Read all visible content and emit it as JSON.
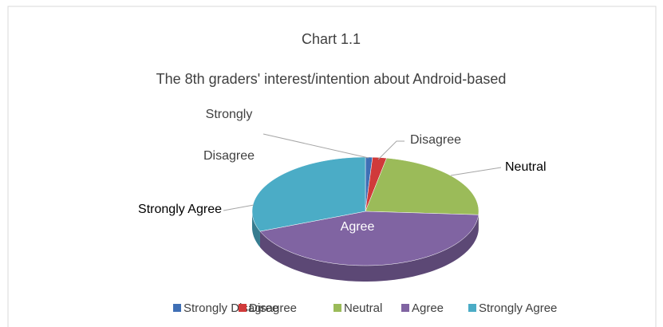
{
  "chart_data": {
    "type": "pie",
    "title": "Chart 1.1",
    "subtitle": "The 8th graders' interest/intention about Android-based",
    "categories": [
      "Strongly Disagree",
      "Disagree",
      "Neutral",
      "Agree",
      "Strongly Agree"
    ],
    "values": [
      1,
      2,
      23,
      43,
      31
    ],
    "colors": [
      "#3f6fb5",
      "#d03a3a",
      "#9bbb59",
      "#8064a2",
      "#4bacc6"
    ],
    "legend": "bottom"
  }
}
